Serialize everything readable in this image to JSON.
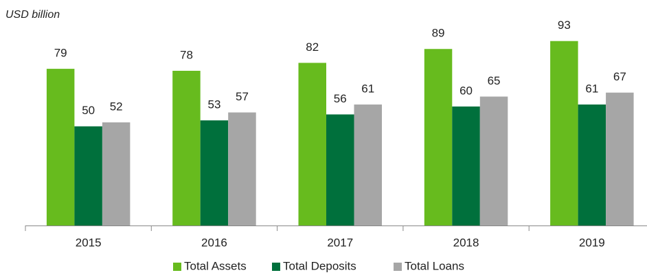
{
  "chart_data": {
    "type": "bar",
    "subtitle": "USD billion",
    "categories": [
      "2015",
      "2016",
      "2017",
      "2018",
      "2019"
    ],
    "series": [
      {
        "name": "Total Assets",
        "color": "#67bb1e",
        "values": [
          79,
          78,
          82,
          89,
          93
        ]
      },
      {
        "name": "Total Deposits",
        "color": "#00703c",
        "values": [
          50,
          53,
          56,
          60,
          61
        ]
      },
      {
        "name": "Total Loans",
        "color": "#a6a6a6",
        "values": [
          52,
          57,
          61,
          65,
          67
        ]
      }
    ],
    "legend": "bottom"
  }
}
